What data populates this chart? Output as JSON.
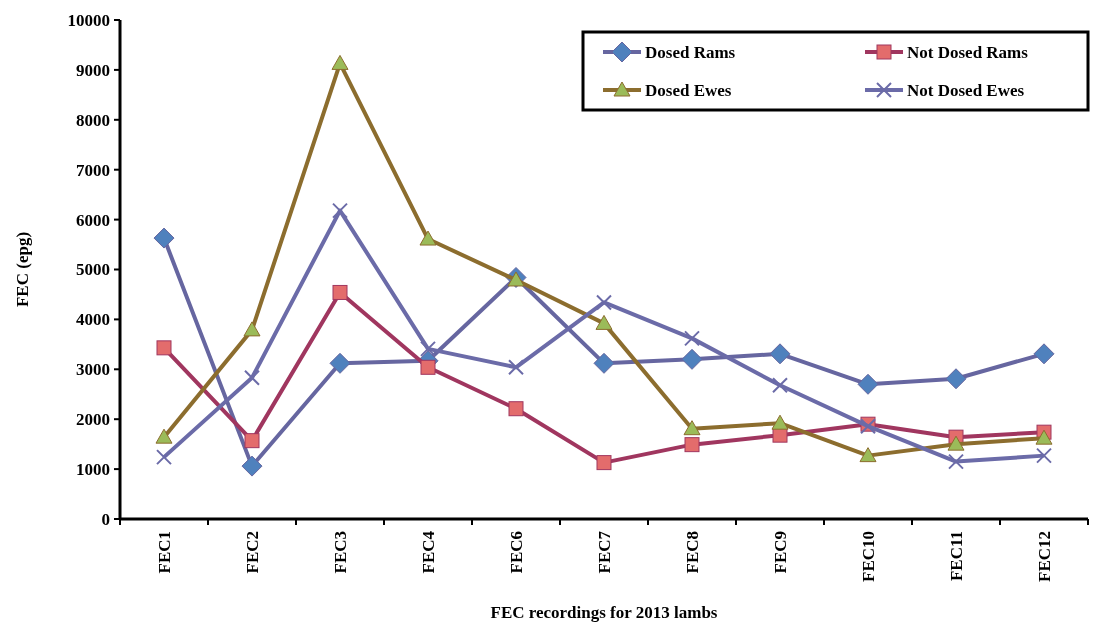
{
  "chart_data": {
    "type": "line",
    "xlabel": "FEC recordings for 2013 lambs",
    "ylabel": "FEC (epg)",
    "categories": [
      "FEC1",
      "FEC2",
      "FEC3",
      "FEC4",
      "FEC6",
      "FEC7",
      "FEC8",
      "FEC9",
      "FEC10",
      "FEC11",
      "FEC12"
    ],
    "ylim": [
      0,
      10000
    ],
    "yticks": [
      0,
      1000,
      2000,
      3000,
      4000,
      5000,
      6000,
      7000,
      8000,
      9000,
      10000
    ],
    "grid": false,
    "legend": "top right",
    "series": [
      {
        "name": "Dosed Rams",
        "color": "#6666a0",
        "marker": "diamond",
        "values": [
          5630,
          1060,
          3120,
          3170,
          4840,
          3120,
          3200,
          3310,
          2700,
          2810,
          3310
        ]
      },
      {
        "name": "Not Dosed Rams",
        "color": "#a0365f",
        "marker": "square",
        "values": [
          3430,
          1570,
          4540,
          3040,
          2210,
          1130,
          1490,
          1680,
          1900,
          1640,
          1740
        ]
      },
      {
        "name": "Dosed Ewes",
        "color": "#8c6d2e",
        "marker": "triangle",
        "values": [
          1640,
          3790,
          9130,
          5610,
          4790,
          3920,
          1810,
          1920,
          1270,
          1500,
          1620
        ]
      },
      {
        "name": "Not Dosed Ewes",
        "color": "#6b6ba8",
        "marker": "cross",
        "values": [
          1240,
          2830,
          6180,
          3410,
          3040,
          4340,
          3620,
          2680,
          1860,
          1150,
          1270
        ]
      }
    ]
  }
}
